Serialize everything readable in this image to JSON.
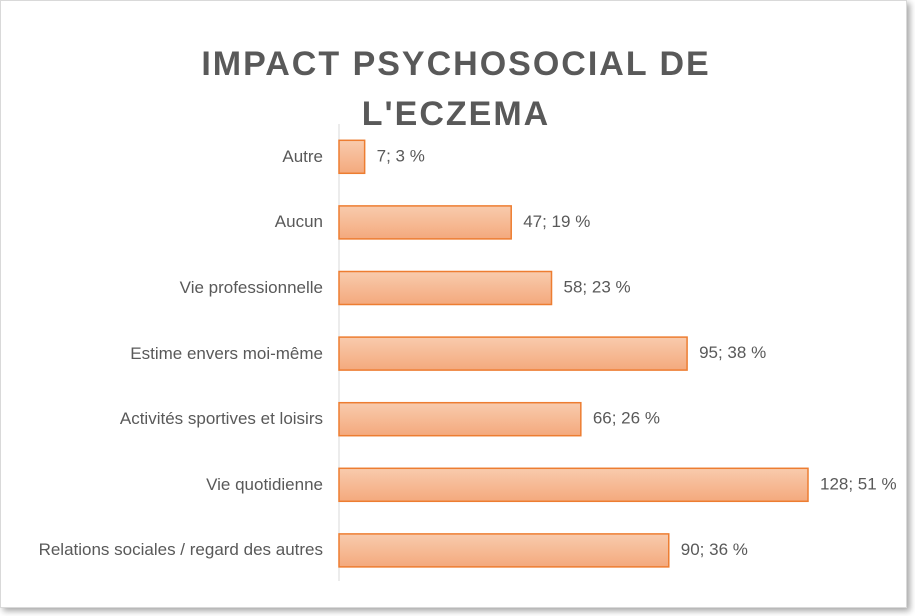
{
  "chart_data": {
    "type": "bar",
    "orientation": "horizontal",
    "title": "IMPACT PSYCHOSOCIAL DE L'ECZEMA",
    "categories": [
      "Autre",
      "Aucun",
      "Vie professionnelle",
      "Estime envers moi-même",
      "Activités sportives et loisirs",
      "Vie quotidienne",
      "Relations sociales / regard des autres"
    ],
    "values": [
      7,
      47,
      58,
      95,
      66,
      128,
      90
    ],
    "value_labels": [
      "7; 3 %",
      "47; 19 %",
      "58; 23 %",
      "95; 38 %",
      "66; 26 %",
      "128; 51 %",
      "90; 36 %"
    ],
    "color": "#f4b183",
    "edge_color": "#ed7d31"
  }
}
